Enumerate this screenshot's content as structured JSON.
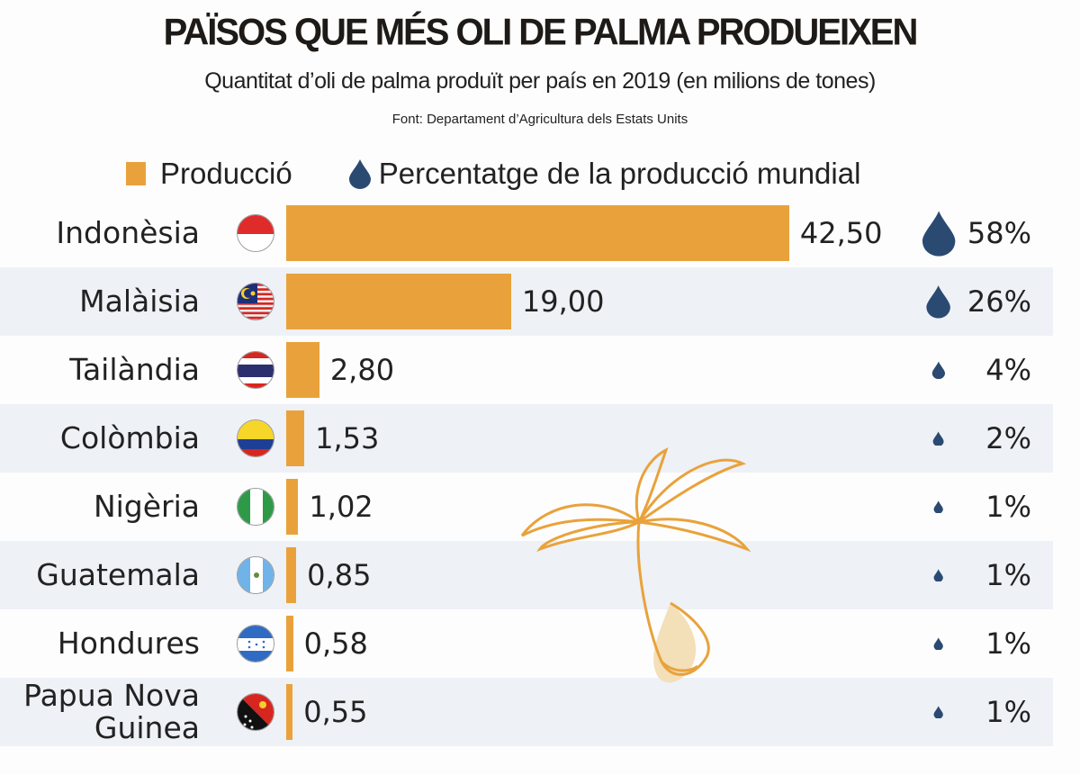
{
  "chart_data": {
    "type": "bar",
    "orientation": "horizontal",
    "title": "PAÏSOS QUE MÉS OLI DE PALMA PRODUEIXEN",
    "subtitle": "Quantitat d’oli de palma produït per país en 2019 (en milions de tones)",
    "source": "Font: Departament d’Agricultura dels Estats Units",
    "legend": {
      "placement": "top",
      "bar_label": "Producció",
      "drop_label": "Percentatge de la producció mundial"
    },
    "categories": [
      "Indonèsia",
      "Malàisia",
      "Tailàndia",
      "Colòmbia",
      "Nigèria",
      "Guatemala",
      "Hondures",
      "Papua Nova\nGuinea"
    ],
    "flags": [
      "indonesia",
      "malaysia",
      "thailand",
      "colombia",
      "nigeria",
      "guatemala",
      "honduras",
      "papua-new-guinea"
    ],
    "series": [
      {
        "name": "Producció",
        "values": [
          42.5,
          19.0,
          2.8,
          1.53,
          1.02,
          0.85,
          0.58,
          0.55
        ],
        "labels": [
          "42,50",
          "19,00",
          "2,80",
          "1,53",
          "1,02",
          "0,85",
          "0,58",
          "0,55"
        ]
      },
      {
        "name": "Percentatge de la producció mundial",
        "values": [
          58,
          26,
          4,
          2,
          1,
          1,
          1,
          1
        ],
        "labels": [
          "58%",
          "26%",
          "4%",
          "2%",
          "1%",
          "1%",
          "1%",
          "1%"
        ]
      }
    ],
    "grid": false,
    "colors": {
      "bar": "#e9a23b",
      "drop": "#2a4a72",
      "row_alt": "#eef1f6",
      "palm": "#e9a23b"
    }
  }
}
